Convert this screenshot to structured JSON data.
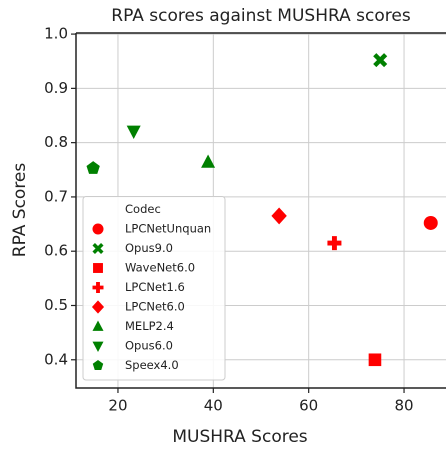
{
  "chart_data": {
    "type": "scatter",
    "title": "RPA scores against MUSHRA scores",
    "x_label": "MUSHRA Scores",
    "y_label": "RPA Scores",
    "legend_title": "Codec",
    "legend_position": "lower left",
    "grid": true,
    "xlim": [
      11.2,
      88.8
    ],
    "xticks": [
      20,
      40,
      60,
      80
    ],
    "ylim": [
      0.348,
      1.002
    ],
    "yticks": [
      {
        "value": 0.4,
        "label": "0.4"
      },
      {
        "value": 0.5,
        "label": "0.5"
      },
      {
        "value": 0.6,
        "label": "0.6"
      },
      {
        "value": 0.7,
        "label": "0.7"
      },
      {
        "value": 0.8,
        "label": "0.8"
      },
      {
        "value": 0.9,
        "label": "0.9"
      },
      {
        "value": 1.0,
        "label": "1.0"
      }
    ],
    "series": [
      {
        "name": "LPCNetUnquan",
        "color": "#ff0000",
        "marker": "circle",
        "x": [
          85.6
        ],
        "values": [
          0.652
        ]
      },
      {
        "name": "Opus9.0",
        "color": "#008000",
        "marker": "x",
        "x": [
          75.0
        ],
        "values": [
          0.952
        ]
      },
      {
        "name": "WaveNet6.0",
        "color": "#ff0000",
        "marker": "square",
        "x": [
          73.9
        ],
        "values": [
          0.4
        ]
      },
      {
        "name": "LPCNet1.6",
        "color": "#ff0000",
        "marker": "plus",
        "x": [
          65.4
        ],
        "values": [
          0.615
        ]
      },
      {
        "name": "LPCNet6.0",
        "color": "#ff0000",
        "marker": "diamond",
        "x": [
          53.8
        ],
        "values": [
          0.665
        ]
      },
      {
        "name": "MELP2.4",
        "color": "#008000",
        "marker": "triangle-up",
        "x": [
          38.9
        ],
        "values": [
          0.764
        ]
      },
      {
        "name": "Opus6.0",
        "color": "#008000",
        "marker": "triangle-down",
        "x": [
          23.3
        ],
        "values": [
          0.821
        ]
      },
      {
        "name": "Speex4.0",
        "color": "#008000",
        "marker": "pentagon",
        "x": [
          14.8
        ],
        "values": [
          0.753
        ]
      }
    ]
  }
}
